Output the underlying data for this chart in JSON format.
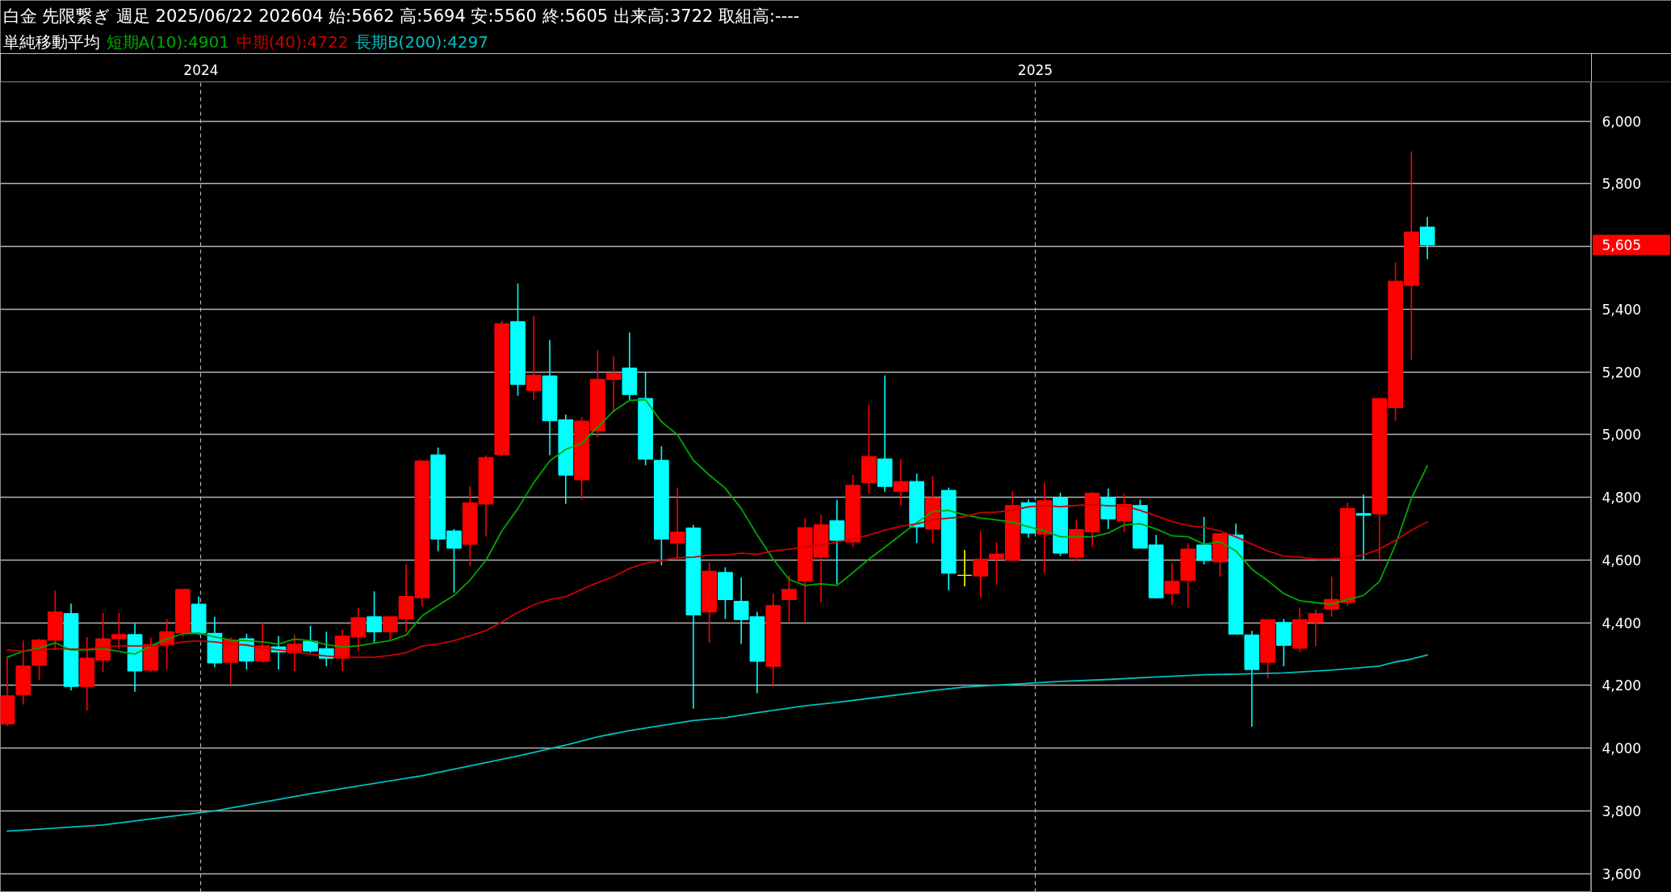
{
  "chart_data": {
    "type": "candlestick",
    "title": "白金 先限繋ぎ 週足 2025/06/22 202604 始:5662 高:5694 安:5560 終:5605 出来高:3722 取組高:----",
    "legend_title": "単純移動平均",
    "legend": "top left",
    "grid": true,
    "x": [
      "2023-10-08",
      "2023-10-15",
      "2023-10-22",
      "2023-10-29",
      "2023-11-05",
      "2023-11-12",
      "2023-11-19",
      "2023-11-26",
      "2023-12-03",
      "2023-12-10",
      "2023-12-17",
      "2023-12-24",
      "2023-12-31",
      "2024-01-07",
      "2024-01-14",
      "2024-01-21",
      "2024-01-28",
      "2024-02-04",
      "2024-02-11",
      "2024-02-18",
      "2024-02-25",
      "2024-03-03",
      "2024-03-10",
      "2024-03-17",
      "2024-03-24",
      "2024-03-31",
      "2024-04-07",
      "2024-04-14",
      "2024-04-21",
      "2024-04-28",
      "2024-05-05",
      "2024-05-12",
      "2024-05-19",
      "2024-05-26",
      "2024-06-02",
      "2024-06-09",
      "2024-06-16",
      "2024-06-23",
      "2024-06-30",
      "2024-07-07",
      "2024-07-14",
      "2024-07-21",
      "2024-07-28",
      "2024-08-04",
      "2024-08-11",
      "2024-08-18",
      "2024-08-25",
      "2024-09-01",
      "2024-09-08",
      "2024-09-15",
      "2024-09-22",
      "2024-09-29",
      "2024-10-06",
      "2024-10-13",
      "2024-10-20",
      "2024-10-27",
      "2024-11-03",
      "2024-11-10",
      "2024-11-17",
      "2024-11-24",
      "2024-12-01",
      "2024-12-08",
      "2024-12-15",
      "2024-12-22",
      "2024-12-29",
      "2025-01-05",
      "2025-01-12",
      "2025-01-19",
      "2025-01-26",
      "2025-02-02",
      "2025-02-09",
      "2025-02-16",
      "2025-02-23",
      "2025-03-02",
      "2025-03-09",
      "2025-03-16",
      "2025-03-23",
      "2025-03-30",
      "2025-04-06",
      "2025-04-13",
      "2025-04-20",
      "2025-04-27",
      "2025-05-04",
      "2025-05-11",
      "2025-05-18",
      "2025-05-25",
      "2025-06-01",
      "2025-06-08",
      "2025-06-15",
      "2025-06-22"
    ],
    "ohlc": [
      [
        4077,
        4290,
        4071,
        4167
      ],
      [
        4171,
        4343,
        4139,
        4262
      ],
      [
        4264,
        4348,
        4218,
        4345
      ],
      [
        4345,
        4502,
        4313,
        4434
      ],
      [
        4429,
        4461,
        4184,
        4197
      ],
      [
        4197,
        4354,
        4120,
        4287
      ],
      [
        4281,
        4431,
        4242,
        4349
      ],
      [
        4349,
        4431,
        4316,
        4362
      ],
      [
        4362,
        4397,
        4180,
        4246
      ],
      [
        4249,
        4352,
        4242,
        4330
      ],
      [
        4330,
        4412,
        4251,
        4371
      ],
      [
        4368,
        4506,
        4355,
        4506
      ],
      [
        4459,
        4484,
        4361,
        4368
      ],
      [
        4366,
        4419,
        4258,
        4272
      ],
      [
        4274,
        4354,
        4204,
        4345
      ],
      [
        4349,
        4365,
        4251,
        4278
      ],
      [
        4278,
        4400,
        4272,
        4326
      ],
      [
        4323,
        4358,
        4251,
        4307
      ],
      [
        4304,
        4362,
        4246,
        4332
      ],
      [
        4341,
        4390,
        4304,
        4310
      ],
      [
        4317,
        4371,
        4261,
        4287
      ],
      [
        4287,
        4377,
        4246,
        4358
      ],
      [
        4355,
        4448,
        4309,
        4416
      ],
      [
        4419,
        4500,
        4335,
        4371
      ],
      [
        4371,
        4419,
        4345,
        4419
      ],
      [
        4412,
        4586,
        4371,
        4484
      ],
      [
        4480,
        4916,
        4452,
        4916
      ],
      [
        4935,
        4959,
        4628,
        4667
      ],
      [
        4693,
        4699,
        4496,
        4638
      ],
      [
        4650,
        4835,
        4581,
        4782
      ],
      [
        4779,
        4934,
        4674,
        4927
      ],
      [
        4936,
        5363,
        4931,
        5354
      ],
      [
        5360,
        5482,
        5124,
        5160
      ],
      [
        5141,
        5378,
        5111,
        5189
      ],
      [
        5187,
        5301,
        4934,
        5044
      ],
      [
        5047,
        5064,
        4779,
        4871
      ],
      [
        4856,
        5056,
        4793,
        5043
      ],
      [
        5012,
        5269,
        4992,
        5176
      ],
      [
        5176,
        5249,
        5073,
        5195
      ],
      [
        5212,
        5326,
        5109,
        5128
      ],
      [
        5115,
        5198,
        4902,
        4922
      ],
      [
        4918,
        4963,
        4583,
        4667
      ],
      [
        4654,
        4831,
        4609,
        4689
      ],
      [
        4702,
        4712,
        4126,
        4425
      ],
      [
        4435,
        4592,
        4336,
        4564
      ],
      [
        4560,
        4577,
        4412,
        4474
      ],
      [
        4468,
        4545,
        4332,
        4410
      ],
      [
        4419,
        4435,
        4175,
        4277
      ],
      [
        4261,
        4493,
        4197,
        4455
      ],
      [
        4474,
        4551,
        4403,
        4506
      ],
      [
        4534,
        4734,
        4403,
        4703
      ],
      [
        4609,
        4744,
        4464,
        4712
      ],
      [
        4725,
        4792,
        4523,
        4663
      ],
      [
        4658,
        4871,
        4641,
        4838
      ],
      [
        4847,
        5096,
        4811,
        4930
      ],
      [
        4922,
        5189,
        4818,
        4835
      ],
      [
        4819,
        4922,
        4774,
        4850
      ],
      [
        4850,
        4876,
        4654,
        4706
      ],
      [
        4699,
        4867,
        4654,
        4798
      ],
      [
        4822,
        4831,
        4504,
        4558
      ],
      [
        4551,
        4632,
        4516,
        4551
      ],
      [
        4549,
        4693,
        4480,
        4603
      ],
      [
        4605,
        4657,
        4522,
        4619
      ],
      [
        4600,
        4819,
        4596,
        4774
      ],
      [
        4783,
        4793,
        4671,
        4686
      ],
      [
        4683,
        4847,
        4558,
        4789
      ],
      [
        4798,
        4815,
        4613,
        4622
      ],
      [
        4609,
        4728,
        4596,
        4697
      ],
      [
        4690,
        4818,
        4641,
        4813
      ],
      [
        4800,
        4828,
        4699,
        4731
      ],
      [
        4725,
        4811,
        4689,
        4777
      ],
      [
        4774,
        4793,
        4638,
        4638
      ],
      [
        4648,
        4680,
        4477,
        4480
      ],
      [
        4493,
        4590,
        4457,
        4532
      ],
      [
        4535,
        4654,
        4448,
        4635
      ],
      [
        4648,
        4738,
        4586,
        4599
      ],
      [
        4594,
        4684,
        4547,
        4684
      ],
      [
        4680,
        4716,
        4364,
        4364
      ],
      [
        4361,
        4374,
        4068,
        4251
      ],
      [
        4274,
        4410,
        4223,
        4410
      ],
      [
        4401,
        4412,
        4261,
        4328
      ],
      [
        4319,
        4448,
        4307,
        4410
      ],
      [
        4401,
        4442,
        4326,
        4429
      ],
      [
        4444,
        4547,
        4419,
        4474
      ],
      [
        4465,
        4783,
        4454,
        4764
      ],
      [
        4748,
        4809,
        4599,
        4743
      ],
      [
        4747,
        5115,
        4596,
        5115
      ],
      [
        5086,
        5549,
        5044,
        5489
      ],
      [
        5476,
        5903,
        5238,
        5646
      ],
      [
        5662,
        5694,
        5560,
        5605
      ]
    ],
    "colors": [
      "#ff0000",
      "#ff0000",
      "#ff0000",
      "#ff0000",
      "#00ffff",
      "#ff0000",
      "#ff0000",
      "#ff0000",
      "#00ffff",
      "#ff0000",
      "#ff0000",
      "#ff0000",
      "#00ffff",
      "#00ffff",
      "#ff0000",
      "#00ffff",
      "#ff0000",
      "#00ffff",
      "#ff0000",
      "#00ffff",
      "#00ffff",
      "#ff0000",
      "#ff0000",
      "#00ffff",
      "#ff0000",
      "#ff0000",
      "#ff0000",
      "#00ffff",
      "#00ffff",
      "#ff0000",
      "#ff0000",
      "#ff0000",
      "#00ffff",
      "#ff0000",
      "#00ffff",
      "#00ffff",
      "#ff0000",
      "#ff0000",
      "#ff0000",
      "#00ffff",
      "#00ffff",
      "#00ffff",
      "#ff0000",
      "#00ffff",
      "#ff0000",
      "#00ffff",
      "#00ffff",
      "#00ffff",
      "#ff0000",
      "#ff0000",
      "#ff0000",
      "#ff0000",
      "#00ffff",
      "#ff0000",
      "#ff0000",
      "#00ffff",
      "#ff0000",
      "#00ffff",
      "#ff0000",
      "#00ffff",
      "#ffff00",
      "#ff0000",
      "#ff0000",
      "#ff0000",
      "#00ffff",
      "#ff0000",
      "#00ffff",
      "#ff0000",
      "#ff0000",
      "#00ffff",
      "#ff0000",
      "#00ffff",
      "#00ffff",
      "#ff0000",
      "#ff0000",
      "#00ffff",
      "#ff0000",
      "#00ffff",
      "#00ffff",
      "#ff0000",
      "#00ffff",
      "#ff0000",
      "#ff0000",
      "#ff0000",
      "#ff0000",
      "#00ffff",
      "#ff0000",
      "#ff0000",
      "#ff0000",
      "#00ffff"
    ],
    "series": [
      {
        "type": "line",
        "name": "短期A(10):4901",
        "color": "#00a800",
        "values": [
          4290,
          4309,
          4319,
          4336,
          4313,
          4313,
          4317,
          4309,
          4300,
          4326,
          4348,
          4365,
          4367,
          4355,
          4345,
          4343,
          4339,
          4332,
          4348,
          4343,
          4330,
          4323,
          4326,
          4335,
          4343,
          4361,
          4422,
          4455,
          4487,
          4536,
          4599,
          4693,
          4764,
          4847,
          4916,
          4953,
          4972,
          5024,
          5075,
          5109,
          5111,
          5041,
          5000,
          4918,
          4871,
          4829,
          4764,
          4680,
          4603,
          4538,
          4519,
          4524,
          4519,
          4560,
          4603,
          4641,
          4680,
          4719,
          4755,
          4758,
          4744,
          4734,
          4728,
          4721,
          4706,
          4693,
          4674,
          4674,
          4674,
          4686,
          4712,
          4716,
          4699,
          4677,
          4674,
          4651,
          4658,
          4629,
          4571,
          4534,
          4493,
          4470,
          4464,
          4459,
          4474,
          4487,
          4532,
          4648,
          4796,
          4901
        ]
      },
      {
        "type": "line",
        "name": "中期(40):4722",
        "color": "#cc0000",
        "values": [
          4313,
          4309,
          4313,
          4317,
          4316,
          4316,
          4322,
          4326,
          4326,
          4326,
          4329,
          4339,
          4342,
          4339,
          4332,
          4329,
          4319,
          4313,
          4307,
          4300,
          4294,
          4291,
          4290,
          4290,
          4296,
          4304,
          4326,
          4332,
          4343,
          4358,
          4375,
          4403,
          4433,
          4457,
          4474,
          4483,
          4506,
          4528,
          4547,
          4573,
          4590,
          4599,
          4607,
          4609,
          4616,
          4616,
          4622,
          4618,
          4629,
          4635,
          4641,
          4648,
          4657,
          4667,
          4680,
          4695,
          4708,
          4715,
          4728,
          4734,
          4738,
          4751,
          4753,
          4758,
          4770,
          4774,
          4770,
          4774,
          4777,
          4773,
          4773,
          4758,
          4741,
          4723,
          4710,
          4704,
          4693,
          4674,
          4651,
          4629,
          4613,
          4609,
          4603,
          4603,
          4609,
          4616,
          4635,
          4663,
          4695,
          4722
        ]
      },
      {
        "type": "line",
        "name": "長期B(200):4297",
        "color": "#00c0c0",
        "x": [
          "2023-10-08",
          "2023-11-19",
          "2024-01-07",
          "2024-02-18",
          "2024-04-07",
          "2024-05-19",
          "2024-06-09",
          "2024-06-23",
          "2024-07-07",
          "2024-07-21",
          "2024-08-04",
          "2024-08-18",
          "2024-09-01",
          "2024-09-22",
          "2024-10-06",
          "2024-10-27",
          "2024-11-17",
          "2024-12-01",
          "2024-12-22",
          "2025-01-12",
          "2025-02-02",
          "2025-02-23",
          "2025-03-16",
          "2025-03-30",
          "2025-04-20",
          "2025-05-11",
          "2025-06-01",
          "2025-06-08",
          "2025-06-15",
          "2025-06-22"
        ],
        "values": [
          3735,
          3755,
          3800,
          3855,
          3912,
          3975,
          4010,
          4036,
          4056,
          4072,
          4088,
          4097,
          4113,
          4135,
          4146,
          4165,
          4184,
          4195,
          4204,
          4213,
          4219,
          4227,
          4234,
          4236,
          4240,
          4249,
          4262,
          4275,
          4284,
          4297
        ]
      }
    ],
    "xlim": [
      "2023-10-05",
      "2025-09-02"
    ],
    "xticks": [
      {
        "value": "2024-01-01",
        "label": "2024"
      },
      {
        "value": "2025-01-01",
        "label": "2025"
      }
    ],
    "ylim": [
      3540,
      6125
    ],
    "yticks": [
      {
        "value": 3600,
        "label": "3,600"
      },
      {
        "value": 3800,
        "label": "3,800"
      },
      {
        "value": 4000,
        "label": "4,000"
      },
      {
        "value": 4200,
        "label": "4,200"
      },
      {
        "value": 4400,
        "label": "4,400"
      },
      {
        "value": 4600,
        "label": "4,600"
      },
      {
        "value": 4800,
        "label": "4,800"
      },
      {
        "value": 5000,
        "label": "5,000"
      },
      {
        "value": 5200,
        "label": "5,200"
      },
      {
        "value": 5400,
        "label": "5,400"
      },
      {
        "value": 5600,
        "label": null
      },
      {
        "value": 5800,
        "label": "5,800"
      },
      {
        "value": 6000,
        "label": "6,000"
      }
    ],
    "annotations": [
      "5,605"
    ]
  }
}
